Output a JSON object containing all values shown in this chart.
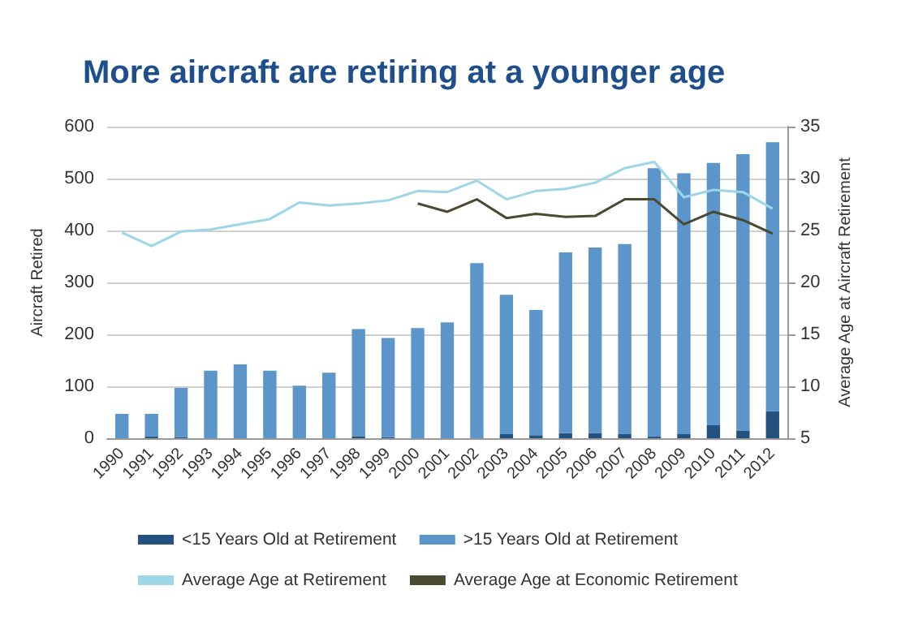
{
  "chart_data": {
    "type": "bar",
    "title": "More aircraft are retiring at a younger age",
    "ylabel": "Aircraft Retired",
    "y2label": "Average Age at Aircraft Retirement",
    "categories": [
      "1990",
      "1991",
      "1992",
      "1993",
      "1994",
      "1995",
      "1996",
      "1997",
      "1998",
      "1999",
      "2000",
      "2001",
      "2002",
      "2003",
      "2004",
      "2005",
      "2006",
      "2007",
      "2008",
      "2009",
      "2010",
      "2011",
      "2012"
    ],
    "stacked": true,
    "ylim": [
      0,
      600
    ],
    "yticks": [
      0,
      100,
      200,
      300,
      400,
      500,
      600
    ],
    "y2lim": [
      5,
      35
    ],
    "y2ticks": [
      5,
      10,
      15,
      20,
      25,
      30,
      35
    ],
    "grid": "y",
    "legend": "bottom",
    "series": [
      {
        "name": "<15 Years Old at Retirement",
        "color": "#24527f",
        "values": [
          0,
          3,
          2,
          0,
          0,
          0,
          0,
          0,
          4,
          2,
          0,
          0,
          0,
          8,
          6,
          10,
          10,
          8,
          3,
          8,
          25,
          15,
          52
        ]
      },
      {
        "name": ">15 Years Old at Retirement",
        "color": "#5b95c9",
        "values": [
          47,
          44,
          95,
          130,
          142,
          130,
          101,
          126,
          206,
          191,
          212,
          223,
          337,
          268,
          241,
          348,
          357,
          366,
          517,
          502,
          505,
          532,
          518
        ]
      },
      {
        "name": "Average Age at Retirement",
        "type": "line",
        "axis": "y2",
        "color": "#9dd6e6",
        "values": [
          24.8,
          23.5,
          24.9,
          25.1,
          25.6,
          26.1,
          27.7,
          27.4,
          27.6,
          27.9,
          28.8,
          28.7,
          29.8,
          28.0,
          28.8,
          29.0,
          29.6,
          31.0,
          31.6,
          28.2,
          28.9,
          28.7,
          27.1
        ]
      },
      {
        "name": "Average Age at Economic Retirement",
        "type": "line",
        "axis": "y2",
        "color": "#4a4a33",
        "values": [
          null,
          null,
          null,
          null,
          null,
          null,
          null,
          null,
          null,
          null,
          27.6,
          26.8,
          28.0,
          26.2,
          26.6,
          26.3,
          26.4,
          28.0,
          28.0,
          25.6,
          26.8,
          26.0,
          24.7
        ]
      }
    ]
  }
}
